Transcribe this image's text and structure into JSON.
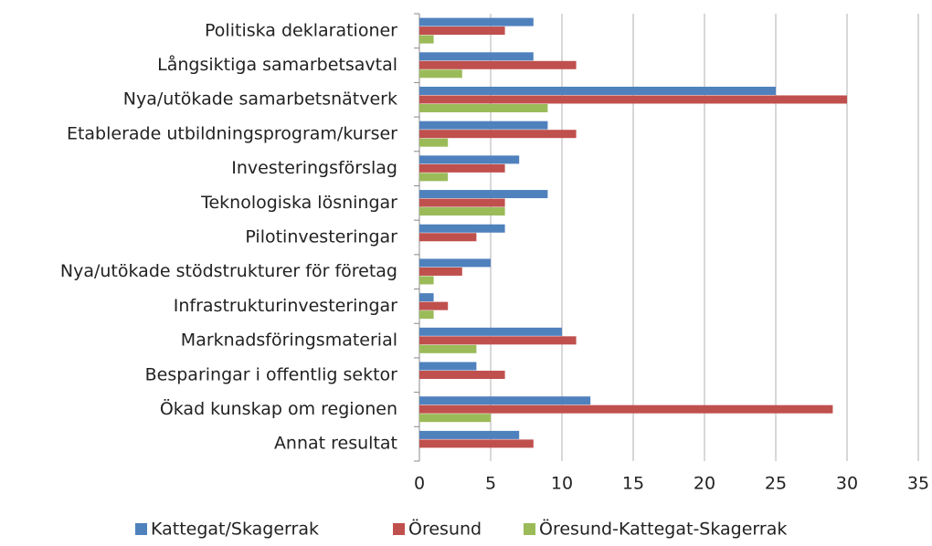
{
  "chart_data": {
    "type": "bar",
    "orientation": "horizontal",
    "categories": [
      "Politiska deklarationer",
      "Långsiktiga samarbetsavtal",
      "Nya/utökade samarbetsnätverk",
      "Etablerade utbildningsprogram/kurser",
      "Investeringsförslag",
      "Teknologiska lösningar",
      "Pilotinvesteringar",
      "Nya/utökade stödstrukturer för företag",
      "Infrastrukturinvesteringar",
      "Marknadsföringsmaterial",
      "Besparingar i offentlig sektor",
      "Ökad kunskap om regionen",
      "Annat resultat"
    ],
    "series": [
      {
        "name": "Kattegat/Skagerrak",
        "color": "#4f81bd",
        "values": [
          8,
          8,
          25,
          9,
          7,
          9,
          6,
          5,
          1,
          10,
          4,
          12,
          7
        ]
      },
      {
        "name": "Öresund",
        "color": "#c0504d",
        "values": [
          6,
          11,
          30,
          11,
          6,
          6,
          4,
          3,
          2,
          11,
          6,
          29,
          8
        ]
      },
      {
        "name": "Öresund-Kattegat-Skagerrak",
        "color": "#9bbb59",
        "values": [
          1,
          3,
          9,
          2,
          2,
          6,
          0,
          1,
          1,
          4,
          0,
          5,
          0
        ]
      }
    ],
    "xlim": [
      0,
      35
    ],
    "xticks": [
      0,
      5,
      10,
      15,
      20,
      25,
      30,
      35
    ],
    "grid": true,
    "legend": "bottom"
  }
}
